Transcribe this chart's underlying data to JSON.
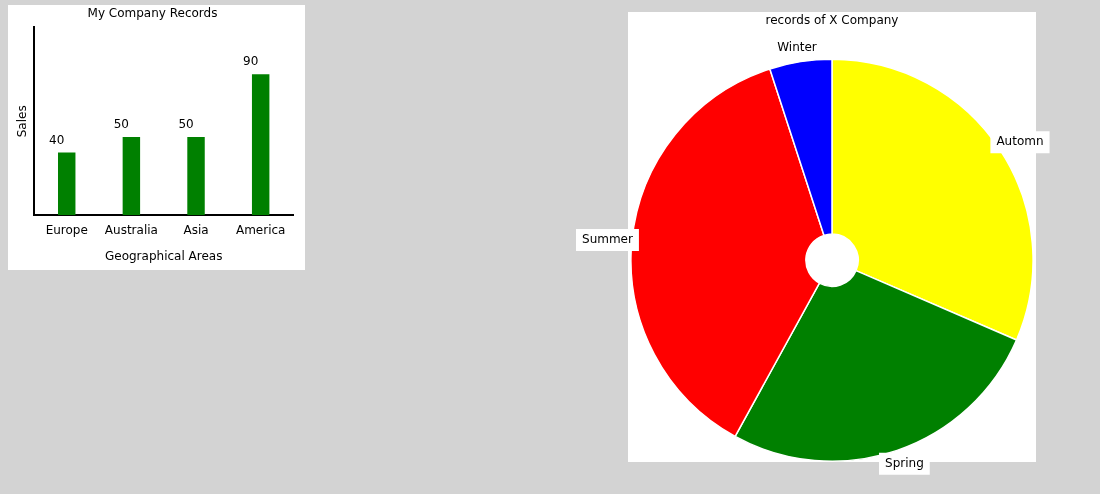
{
  "chart_data": [
    {
      "type": "bar",
      "title": "My Company Records",
      "xlabel": "Geographical Areas",
      "ylabel": "Sales",
      "categories": [
        "Europe",
        "Australia",
        "Asia",
        "America"
      ],
      "values": [
        40,
        50,
        50,
        90
      ],
      "color": "#008000",
      "data_labels": true,
      "tick_labels": "x",
      "grid": false,
      "legend": false
    },
    {
      "type": "donut",
      "title": "records of X Company",
      "categories": [
        "Automn",
        "Spring",
        "Summer",
        "Winter"
      ],
      "values": [
        31.5,
        26.5,
        37,
        5
      ],
      "colors": [
        "#ffff00",
        "#008000",
        "#ff0000",
        "#0000ff"
      ],
      "data_labels": false,
      "legend": false
    }
  ]
}
